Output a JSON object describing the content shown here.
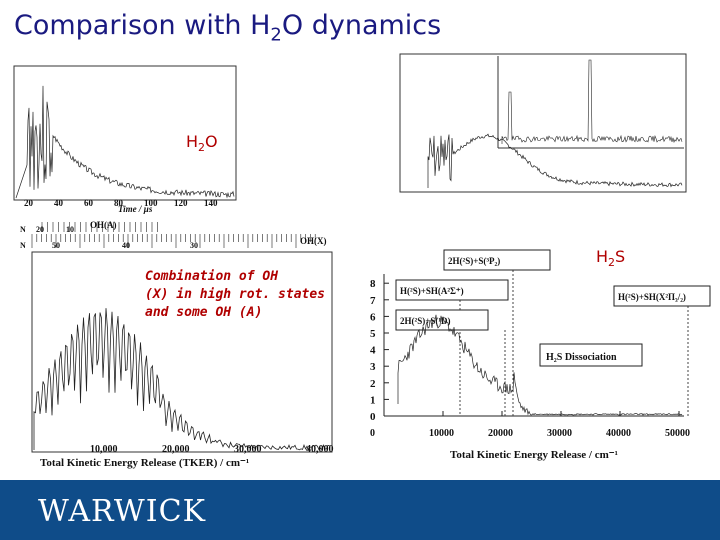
{
  "title": {
    "prefix": "Comparison with H",
    "sub": "2",
    "suffix": "O dynamics"
  },
  "labels": {
    "h2o": {
      "prefix": "H",
      "sub": "2",
      "suffix": "O"
    },
    "h2s": {
      "prefix": "H",
      "sub": "2",
      "suffix": "S"
    }
  },
  "note_lines": [
    "Combination of OH",
    "(X) in high rot. states",
    "and some OH (A)"
  ],
  "footer": {
    "logo": "WARWICK",
    "bg_color": "#0f4c89"
  },
  "chart_data": [
    {
      "type": "line",
      "x_ticks": [
        "20",
        "40",
        "60",
        "80",
        "100",
        "120",
        "140"
      ],
      "xlabel": "Time / µs"
    },
    {
      "type": "line",
      "x_ticks": [
        "10,000",
        "20,000",
        "30,000",
        "40,000"
      ],
      "xlabel": "Total Kinetic Energy Release (TKER) / cm⁻¹",
      "top_labels": [
        "OH(A)",
        "OH(X)"
      ],
      "top_ticks": [
        "N",
        "20",
        "10",
        "N",
        "50",
        "40",
        "30"
      ]
    },
    {
      "type": "line",
      "x_ticks": [
        "0",
        "10000",
        "20000",
        "30000",
        "40000",
        "50000"
      ],
      "y_ticks": [
        "0",
        "1",
        "2",
        "3",
        "4",
        "5",
        "6",
        "7",
        "8"
      ],
      "xlabel": "Total Kinetic Energy Release / cm⁻¹",
      "thresholds": [
        "2H(²S)+S(³P₂)",
        "H(²S)+SH(A²Σ⁺)",
        "2H(²S)+S(¹D)",
        "H(²S)+SH(X²Π₃/₂)"
      ],
      "legend": "H₂S Dissociation"
    }
  ]
}
